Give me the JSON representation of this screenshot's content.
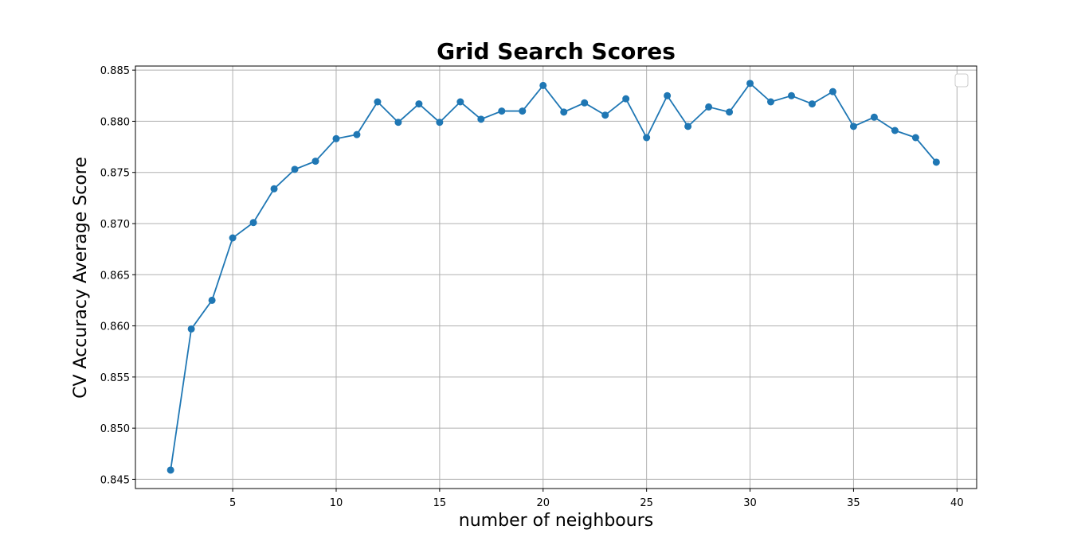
{
  "chart_data": {
    "type": "line",
    "title": "Grid Search Scores",
    "xlabel": "number of neighbours",
    "ylabel": "CV Accuracy Average Score",
    "xlim": [
      0.3,
      40.95
    ],
    "ylim": [
      0.8441,
      0.8854
    ],
    "xticks": [
      5,
      10,
      15,
      20,
      25,
      30,
      35,
      40
    ],
    "yticks": [
      0.845,
      0.85,
      0.855,
      0.86,
      0.865,
      0.87,
      0.875,
      0.88,
      0.885
    ],
    "ytick_labels": [
      "0.845",
      "0.850",
      "0.855",
      "0.860",
      "0.865",
      "0.870",
      "0.875",
      "0.880",
      "0.885"
    ],
    "grid": true,
    "legend": "top-right (empty)",
    "series": [
      {
        "color": "#1f77b4",
        "marker": "circle",
        "x": [
          2,
          3,
          4,
          5,
          6,
          7,
          8,
          9,
          10,
          11,
          12,
          13,
          14,
          15,
          16,
          17,
          18,
          19,
          20,
          21,
          22,
          23,
          24,
          25,
          26,
          27,
          28,
          29,
          30,
          31,
          32,
          33,
          34,
          35,
          36,
          37,
          38,
          39
        ],
        "y": [
          0.8459,
          0.8597,
          0.8625,
          0.8686,
          0.8701,
          0.8734,
          0.8753,
          0.8761,
          0.8783,
          0.8787,
          0.8819,
          0.8799,
          0.8817,
          0.8799,
          0.8819,
          0.8802,
          0.881,
          0.881,
          0.8835,
          0.8809,
          0.8818,
          0.8806,
          0.8822,
          0.8784,
          0.8825,
          0.8795,
          0.8814,
          0.8809,
          0.8837,
          0.8819,
          0.8825,
          0.8817,
          0.8829,
          0.8795,
          0.8804,
          0.8791,
          0.8784,
          0.876
        ]
      }
    ]
  }
}
